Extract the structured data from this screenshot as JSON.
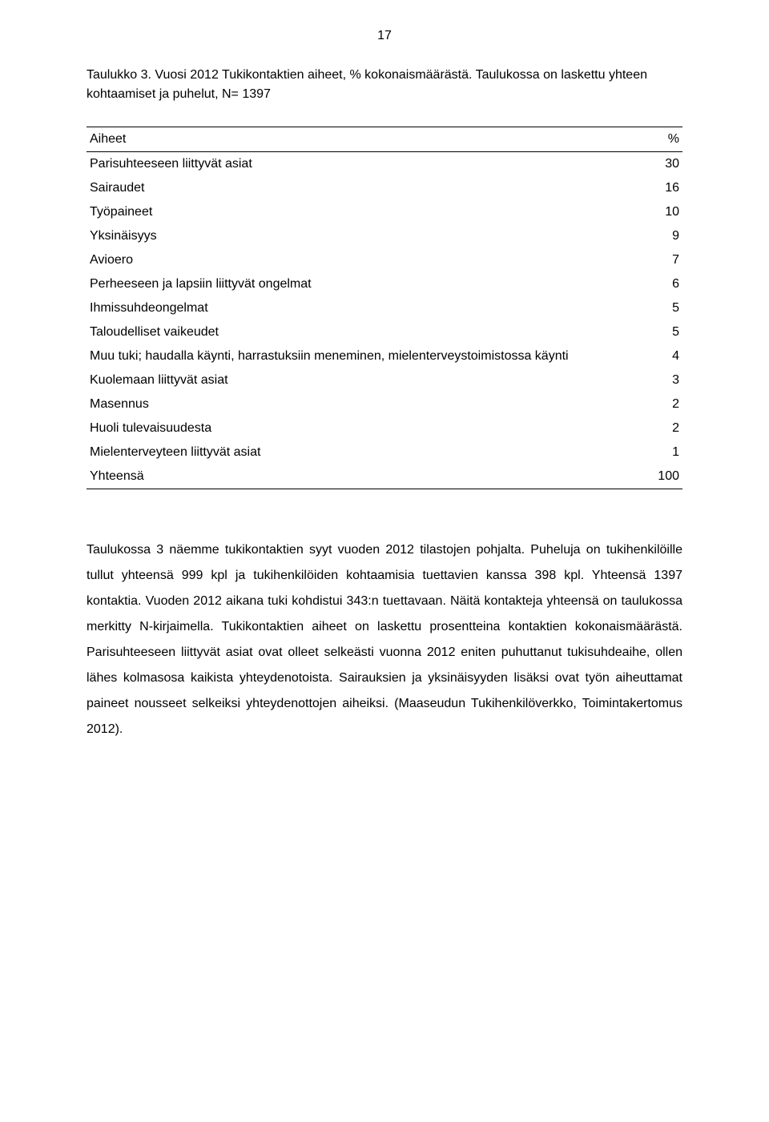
{
  "page_number": "17",
  "caption": "Taulukko 3. Vuosi 2012 Tukikontaktien aiheet, % kokonaismäärästä. Taulukossa on laskettu yhteen kohtaamiset ja puhelut, N= 1397",
  "table": {
    "columns": [
      "Aiheet",
      "%"
    ],
    "rows": [
      {
        "label": "Parisuhteeseen liittyvät asiat",
        "value": "30"
      },
      {
        "label": "Sairaudet",
        "value": "16"
      },
      {
        "label": "Työpaineet",
        "value": "10"
      },
      {
        "label": "Yksinäisyys",
        "value": "9"
      },
      {
        "label": "Avioero",
        "value": "7"
      },
      {
        "label": "Perheeseen ja lapsiin liittyvät ongelmat",
        "value": "6"
      },
      {
        "label": "Ihmissuhdeongelmat",
        "value": "5"
      },
      {
        "label": "Taloudelliset vaikeudet",
        "value": "5"
      },
      {
        "label": "Muu tuki; haudalla käynti, harrastuksiin meneminen, mielenterveystoimistossa käynti",
        "value": "4"
      },
      {
        "label": "Kuolemaan liittyvät asiat",
        "value": "3"
      },
      {
        "label": "Masennus",
        "value": "2"
      },
      {
        "label": "Huoli tulevaisuudesta",
        "value": "2"
      },
      {
        "label": "Mielenterveyteen liittyvät asiat",
        "value": "1"
      }
    ],
    "total": {
      "label": "Yhteensä",
      "value": "100"
    },
    "styling": {
      "border_color": "#000000",
      "font_size_pt": 12,
      "col_widths_percent": [
        88,
        12
      ],
      "col_align": [
        "left",
        "right"
      ]
    }
  },
  "body": "Taulukossa 3 näemme tukikontaktien syyt vuoden 2012 tilastojen pohjalta. Puheluja on tukihenkilöille tullut yhteensä 999 kpl ja tukihenkilöiden kohtaamisia tuettavien kanssa 398 kpl. Yhteensä 1397 kontaktia. Vuoden 2012 aikana tuki kohdistui 343:n tuettavaan. Näitä kontakteja yhteensä on taulukossa merkitty N-kirjaimella. Tukikontaktien aiheet on laskettu prosentteina kontaktien kokonaismäärästä. Parisuhteeseen liittyvät asiat ovat olleet selkeästi vuonna 2012 eniten puhuttanut tukisuhdeaihe, ollen lähes kolmasosa kaikista yhteydenotoista. Sairauksien ja yksinäisyyden lisäksi ovat työn aiheuttamat paineet nousseet selkeiksi yhteydenottojen aiheiksi. (Maaseudun Tukihenkilöverkko, Toimintakertomus 2012).",
  "colors": {
    "background": "#ffffff",
    "text": "#000000",
    "rule": "#000000"
  },
  "typography": {
    "body_font_family": "Arial",
    "body_font_size_pt": 12,
    "line_height": 2.0
  }
}
